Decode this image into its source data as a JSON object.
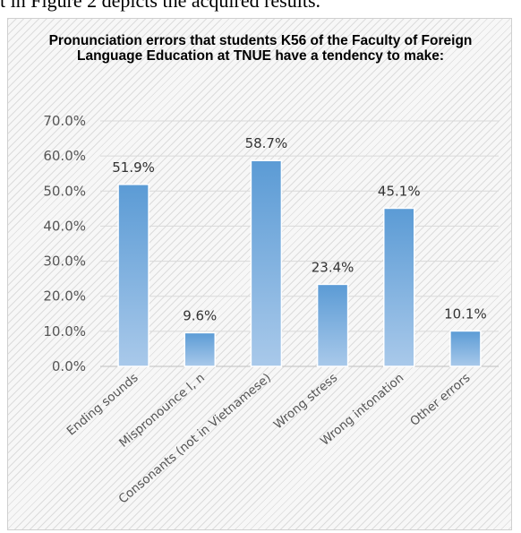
{
  "page": {
    "caption": "t in Figure 2 depicts the acquired results."
  },
  "chart_data": {
    "type": "bar",
    "title": "Pronunciation errors that students K56 of the Faculty of Foreign Language Education at TNUE have a tendency to make:",
    "categories": [
      "Ending sounds",
      "Mispronounce l, n",
      "Consonants (not in Vietnamese)",
      "Wrong stress",
      "Wrong intonation",
      "Other errors"
    ],
    "values": [
      51.9,
      9.6,
      58.7,
      23.4,
      45.1,
      10.1
    ],
    "data_labels": [
      "51.9%",
      "9.6%",
      "58.7%",
      "23.4%",
      "45.1%",
      "10.1%"
    ],
    "ylim": [
      0,
      70
    ],
    "yticks": [
      0,
      10,
      20,
      30,
      40,
      50,
      60,
      70
    ],
    "ytick_labels": [
      "0.0%",
      "10.0%",
      "20.0%",
      "30.0%",
      "40.0%",
      "50.0%",
      "60.0%",
      "70.0%"
    ],
    "xlabel": "",
    "ylabel": "",
    "grid": true,
    "legend": "none",
    "bar_color_top": "#5b9bd5",
    "bar_color_bottom": "#a9c9ea"
  }
}
